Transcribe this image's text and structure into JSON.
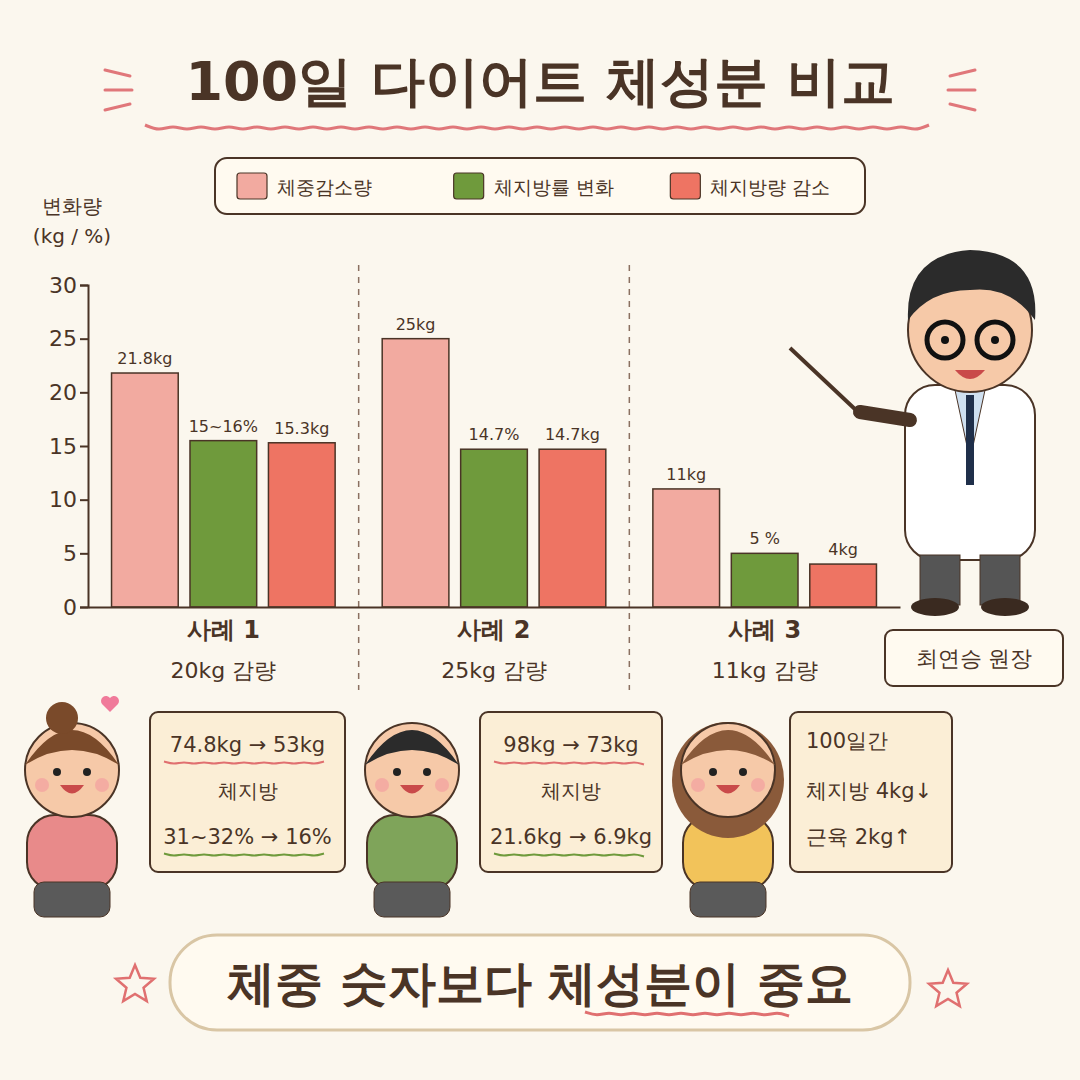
{
  "chart_data": {
    "type": "bar",
    "title": "100일 다이어트 체성분 비교",
    "y_label": [
      "변화량",
      "(kg / %)"
    ],
    "categories": [
      "사례 1",
      "사례 2",
      "사례 3"
    ],
    "category_subtitles": [
      "20kg 감량",
      "25kg 감량",
      "11kg 감량"
    ],
    "series": [
      {
        "name": "체중감소량",
        "color": "#f2aaa0",
        "values": [
          21.8,
          25,
          11
        ],
        "value_labels": [
          "21.8kg",
          "25kg",
          "11kg"
        ]
      },
      {
        "name": "체지방률 변화",
        "color": "#6f9a3c",
        "values": [
          15.5,
          14.7,
          5
        ],
        "value_labels": [
          "15~16%",
          "14.7%",
          "5 %"
        ]
      },
      {
        "name": "체지방량 감소",
        "color": "#ee7463",
        "values": [
          15.3,
          14.7,
          4
        ],
        "value_labels": [
          "15.3kg",
          "14.7kg",
          "4kg"
        ]
      }
    ],
    "ylim": [
      0,
      30
    ],
    "yticks": [
      0,
      5,
      10,
      15,
      20,
      25,
      30
    ],
    "legend": "top",
    "data_labels": true,
    "grid": false,
    "presenter": "최연승 원장",
    "cases": [
      {
        "lines": [
          "74.8kg → 53kg",
          "체지방",
          "31~32% → 16%"
        ]
      },
      {
        "lines": [
          "98kg → 73kg",
          "체지방",
          "21.6kg → 6.9kg"
        ]
      },
      {
        "lines": [
          "100일간",
          "체지방 4kg↓",
          "근육 2kg↑"
        ]
      }
    ],
    "footer": "체중 숫자보다 체성분이 중요"
  }
}
